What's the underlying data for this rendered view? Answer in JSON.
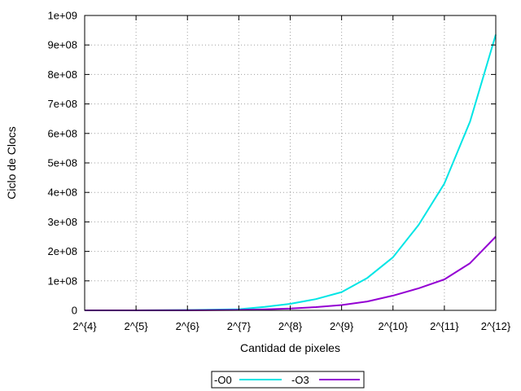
{
  "chart_data": {
    "type": "line",
    "xlabel": "Cantidad de pixeles",
    "ylabel": "Ciclo de Clocs",
    "x_scale": "log2",
    "x_tick_labels": [
      "2^{4}",
      "2^{5}",
      "2^{6}",
      "2^{7}",
      "2^{8}",
      "2^{9}",
      "2^{10}",
      "2^{11}",
      "2^{12}"
    ],
    "x_exponents": [
      4,
      5,
      6,
      7,
      8,
      9,
      10,
      11,
      12
    ],
    "xlim_exponent": [
      4,
      12
    ],
    "y_tick_labels": [
      "0",
      "1e+08",
      "2e+08",
      "3e+08",
      "4e+08",
      "5e+08",
      "6e+08",
      "7e+08",
      "8e+08",
      "9e+08",
      "1e+09"
    ],
    "ylim": [
      0,
      1000000000
    ],
    "grid": true,
    "legend_position": "bottom",
    "series": [
      {
        "name": "-O0",
        "color": "#00e5e5",
        "x_exponent": [
          4,
          5,
          6,
          7,
          7.5,
          8,
          8.5,
          9,
          9.5,
          10,
          10.5,
          11,
          11.5,
          12
        ],
        "values": [
          10000,
          100000,
          1000000,
          4000000,
          12000000,
          22000000,
          38000000,
          62000000,
          110000000,
          180000000,
          290000000,
          430000000,
          640000000,
          935000000
        ]
      },
      {
        "name": "-O3",
        "color": "#9400d3",
        "x_exponent": [
          4,
          5,
          6,
          7,
          7.5,
          8,
          8.5,
          9,
          9.5,
          10,
          10.5,
          11,
          11.5,
          12
        ],
        "values": [
          5000,
          50000,
          300000,
          1500000,
          3500000,
          6000000,
          11000000,
          18000000,
          30000000,
          50000000,
          75000000,
          105000000,
          160000000,
          250000000
        ]
      }
    ]
  }
}
